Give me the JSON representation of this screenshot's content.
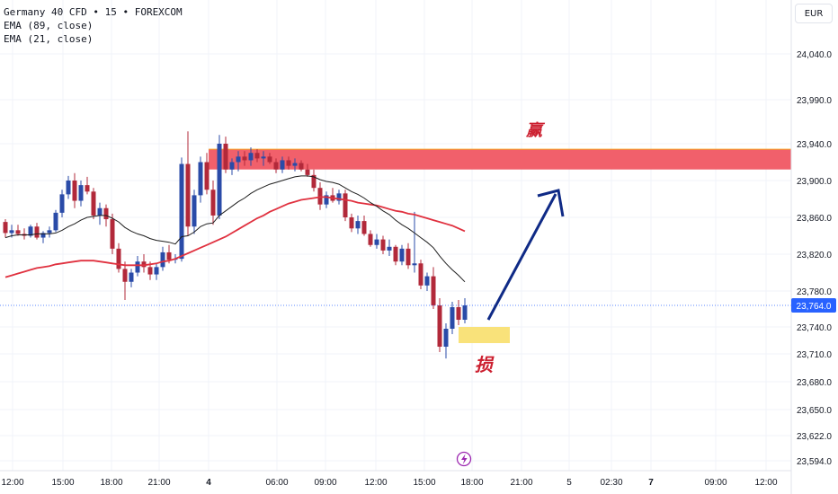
{
  "legend": {
    "symbol_line": "Germany 40 CFD • 15 • FOREXCOM",
    "ema_slow": "EMA (89, close)",
    "ema_fast": "EMA (21, close)"
  },
  "currency": "EUR",
  "colors": {
    "up": "#2a4ba8",
    "down": "#b2293a",
    "ema_slow": "#e0313f",
    "ema_fast": "#1e1e1e",
    "target_zone": "#f1606b",
    "target_zone_border": "#f5a623",
    "stop_zone": "#f9e27a",
    "arrow": "#0f2a86",
    "annotation_text": "#cc2030",
    "price_badge": "#2962ff"
  },
  "annotations": {
    "win_label": "赢",
    "loss_label": "损"
  },
  "chart_data": {
    "type": "candlestick",
    "symbol": "Germany 40 CFD",
    "interval": "15",
    "y_axis": {
      "ticks": [
        "24,040.0",
        "23,990.0",
        "23,940.0",
        "23,900.0",
        "23,860.0",
        "23,820.0",
        "23,780.0",
        "23,740.0",
        "23,710.0",
        "23,680.0",
        "23,650.0",
        "23,622.0",
        "23,594.0"
      ],
      "tick_values": [
        24040,
        23990,
        23940,
        23900,
        23860,
        23820,
        23780,
        23740,
        23710,
        23680,
        23650,
        23622,
        23594
      ]
    },
    "x_axis": {
      "ticks": [
        "12:00",
        "15:00",
        "18:00",
        "21:00",
        "4",
        "06:00",
        "09:00",
        "12:00",
        "15:00",
        "18:00",
        "21:00",
        "5",
        "02:30",
        "7",
        "09:00",
        "12:00"
      ],
      "bold_ticks": [
        "4",
        "7"
      ]
    },
    "last_price": 23764.0,
    "last_price_label": "23,764.0",
    "target_zone": {
      "from": 23912,
      "to": 23934
    },
    "stop_zone": {
      "from": 23722,
      "to": 23740
    },
    "candles": [
      [
        23855,
        23858,
        23838,
        23843
      ],
      [
        23843,
        23852,
        23838,
        23846
      ],
      [
        23846,
        23852,
        23840,
        23842
      ],
      [
        23842,
        23848,
        23836,
        23840
      ],
      [
        23840,
        23852,
        23838,
        23850
      ],
      [
        23850,
        23854,
        23836,
        23838
      ],
      [
        23838,
        23845,
        23832,
        23843
      ],
      [
        23843,
        23850,
        23838,
        23846
      ],
      [
        23846,
        23868,
        23844,
        23865
      ],
      [
        23865,
        23890,
        23860,
        23885
      ],
      [
        23885,
        23905,
        23880,
        23900
      ],
      [
        23900,
        23908,
        23870,
        23878
      ],
      [
        23878,
        23900,
        23872,
        23895
      ],
      [
        23895,
        23904,
        23885,
        23888
      ],
      [
        23888,
        23892,
        23858,
        23862
      ],
      [
        23862,
        23876,
        23852,
        23870
      ],
      [
        23870,
        23874,
        23850,
        23858
      ],
      [
        23858,
        23864,
        23820,
        23826
      ],
      [
        23826,
        23832,
        23800,
        23804
      ],
      [
        23804,
        23812,
        23770,
        23790
      ],
      [
        23790,
        23804,
        23784,
        23800
      ],
      [
        23800,
        23818,
        23796,
        23812
      ],
      [
        23812,
        23820,
        23800,
        23806
      ],
      [
        23806,
        23812,
        23792,
        23798
      ],
      [
        23798,
        23810,
        23792,
        23806
      ],
      [
        23806,
        23828,
        23802,
        23822
      ],
      [
        23822,
        23830,
        23810,
        23814
      ],
      [
        23814,
        23820,
        23810,
        23815
      ],
      [
        23815,
        23925,
        23812,
        23918
      ],
      [
        23918,
        23954,
        23840,
        23850
      ],
      [
        23850,
        23890,
        23842,
        23884
      ],
      [
        23884,
        23926,
        23876,
        23920
      ],
      [
        23920,
        23930,
        23885,
        23890
      ],
      [
        23890,
        23900,
        23852,
        23862
      ],
      [
        23862,
        23950,
        23858,
        23940
      ],
      [
        23940,
        23948,
        23908,
        23912
      ],
      [
        23912,
        23924,
        23906,
        23920
      ],
      [
        23920,
        23932,
        23910,
        23926
      ],
      [
        23926,
        23932,
        23916,
        23922
      ],
      [
        23922,
        23936,
        23916,
        23930
      ],
      [
        23930,
        23934,
        23920,
        23924
      ],
      [
        23924,
        23932,
        23916,
        23926
      ],
      [
        23926,
        23930,
        23918,
        23920
      ],
      [
        23920,
        23924,
        23908,
        23912
      ],
      [
        23912,
        23926,
        23908,
        23922
      ],
      [
        23922,
        23926,
        23912,
        23916
      ],
      [
        23916,
        23924,
        23910,
        23919
      ],
      [
        23919,
        23922,
        23910,
        23912
      ],
      [
        23912,
        23918,
        23904,
        23906
      ],
      [
        23906,
        23912,
        23888,
        23892
      ],
      [
        23892,
        23898,
        23868,
        23874
      ],
      [
        23874,
        23888,
        23870,
        23884
      ],
      [
        23884,
        23892,
        23876,
        23878
      ],
      [
        23878,
        23890,
        23874,
        23886
      ],
      [
        23886,
        23890,
        23856,
        23860
      ],
      [
        23860,
        23864,
        23844,
        23848
      ],
      [
        23848,
        23862,
        23842,
        23856
      ],
      [
        23856,
        23862,
        23840,
        23842
      ],
      [
        23842,
        23846,
        23828,
        23830
      ],
      [
        23830,
        23842,
        23826,
        23836
      ],
      [
        23836,
        23840,
        23820,
        23824
      ],
      [
        23824,
        23836,
        23818,
        23828
      ],
      [
        23828,
        23830,
        23808,
        23812
      ],
      [
        23812,
        23830,
        23808,
        23826
      ],
      [
        23826,
        23832,
        23804,
        23808
      ],
      [
        23808,
        23866,
        23800,
        23810
      ],
      [
        23810,
        23814,
        23782,
        23786
      ],
      [
        23786,
        23800,
        23780,
        23796
      ],
      [
        23796,
        23806,
        23760,
        23764
      ],
      [
        23764,
        23772,
        23712,
        23718
      ],
      [
        23718,
        23744,
        23705,
        23738
      ],
      [
        23738,
        23768,
        23732,
        23762
      ],
      [
        23762,
        23770,
        23742,
        23748
      ],
      [
        23748,
        23772,
        23744,
        23764
      ]
    ],
    "ema_21": [
      23838,
      23840,
      23841,
      23841,
      23841,
      23842,
      23842,
      23842,
      23843,
      23846,
      23850,
      23853,
      23857,
      23860,
      23861,
      23862,
      23862,
      23859,
      23855,
      23849,
      23845,
      23842,
      23840,
      23837,
      23835,
      23834,
      23833,
      23831,
      23839,
      23840,
      23844,
      23850,
      23853,
      23854,
      23862,
      23867,
      23872,
      23877,
      23881,
      23886,
      23890,
      23893,
      23896,
      23898,
      23900,
      23902,
      23904,
      23905,
      23905,
      23904,
      23901,
      23899,
      23898,
      23896,
      23892,
      23888,
      23885,
      23881,
      23876,
      23872,
      23867,
      23863,
      23857,
      23852,
      23848,
      23843,
      23838,
      23833,
      23827,
      23818,
      23810,
      23803,
      23797,
      23790
    ],
    "ema_89": [
      23795,
      23797,
      23799,
      23801,
      23803,
      23805,
      23806,
      23807,
      23809,
      23810,
      23811,
      23812,
      23813,
      23813,
      23813,
      23812,
      23811,
      23810,
      23809,
      23808,
      23808,
      23808,
      23808,
      23809,
      23810,
      23812,
      23813,
      23815,
      23818,
      23821,
      23824,
      23827,
      23830,
      23833,
      23836,
      23839,
      23843,
      23847,
      23851,
      23855,
      23859,
      23862,
      23866,
      23869,
      23872,
      23875,
      23877,
      23879,
      23880,
      23881,
      23882,
      23882,
      23881,
      23880,
      23879,
      23878,
      23876,
      23875,
      23874,
      23873,
      23871,
      23869,
      23867,
      23866,
      23864,
      23863,
      23861,
      23859,
      23857,
      23855,
      23853,
      23851,
      23848,
      23845
    ]
  }
}
